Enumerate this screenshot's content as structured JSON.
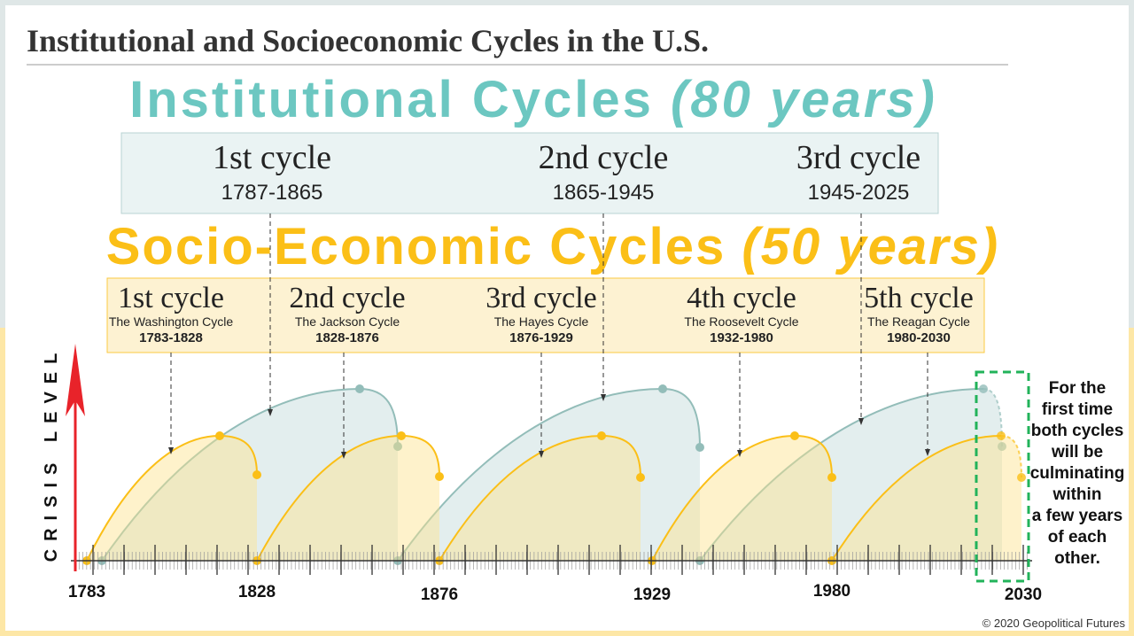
{
  "title": "Institutional and Socioeconomic Cycles in the U.S.",
  "institutional": {
    "heading": "Institutional Cycles ",
    "heading_period": "(80 years)",
    "color": "#6cc7c1",
    "cycles": [
      {
        "label": "1st cycle",
        "years": "1787-1865"
      },
      {
        "label": "2nd cycle",
        "years": "1865-1945"
      },
      {
        "label": "3rd cycle",
        "years": "1945-2025"
      }
    ]
  },
  "socioeconomic": {
    "heading": "Socio-Economic Cycles ",
    "heading_period": "(50 years)",
    "color": "#fbbf17",
    "cycles": [
      {
        "label": "1st cycle",
        "name": "The Washington Cycle",
        "years": "1783-1828"
      },
      {
        "label": "2nd cycle",
        "name": "The Jackson Cycle",
        "years": "1828-1876"
      },
      {
        "label": "3rd cycle",
        "name": "The Hayes Cycle",
        "years": "1876-1929"
      },
      {
        "label": "4th cycle",
        "name": "The Roosevelt Cycle",
        "years": "1932-1980"
      },
      {
        "label": "5th cycle",
        "name": "The Reagan Cycle",
        "years": "1980-2030"
      }
    ]
  },
  "axis": {
    "ylabel": "CRISIS LEVEL",
    "years": [
      "1783",
      "1828",
      "1876",
      "1929",
      "1980",
      "2030"
    ]
  },
  "note": [
    "For the",
    "first time",
    "both cycles",
    "will be",
    "culminating",
    "within",
    "a few years",
    "of each",
    "other."
  ],
  "copyright": "© 2020 Geopolitical Futures"
}
